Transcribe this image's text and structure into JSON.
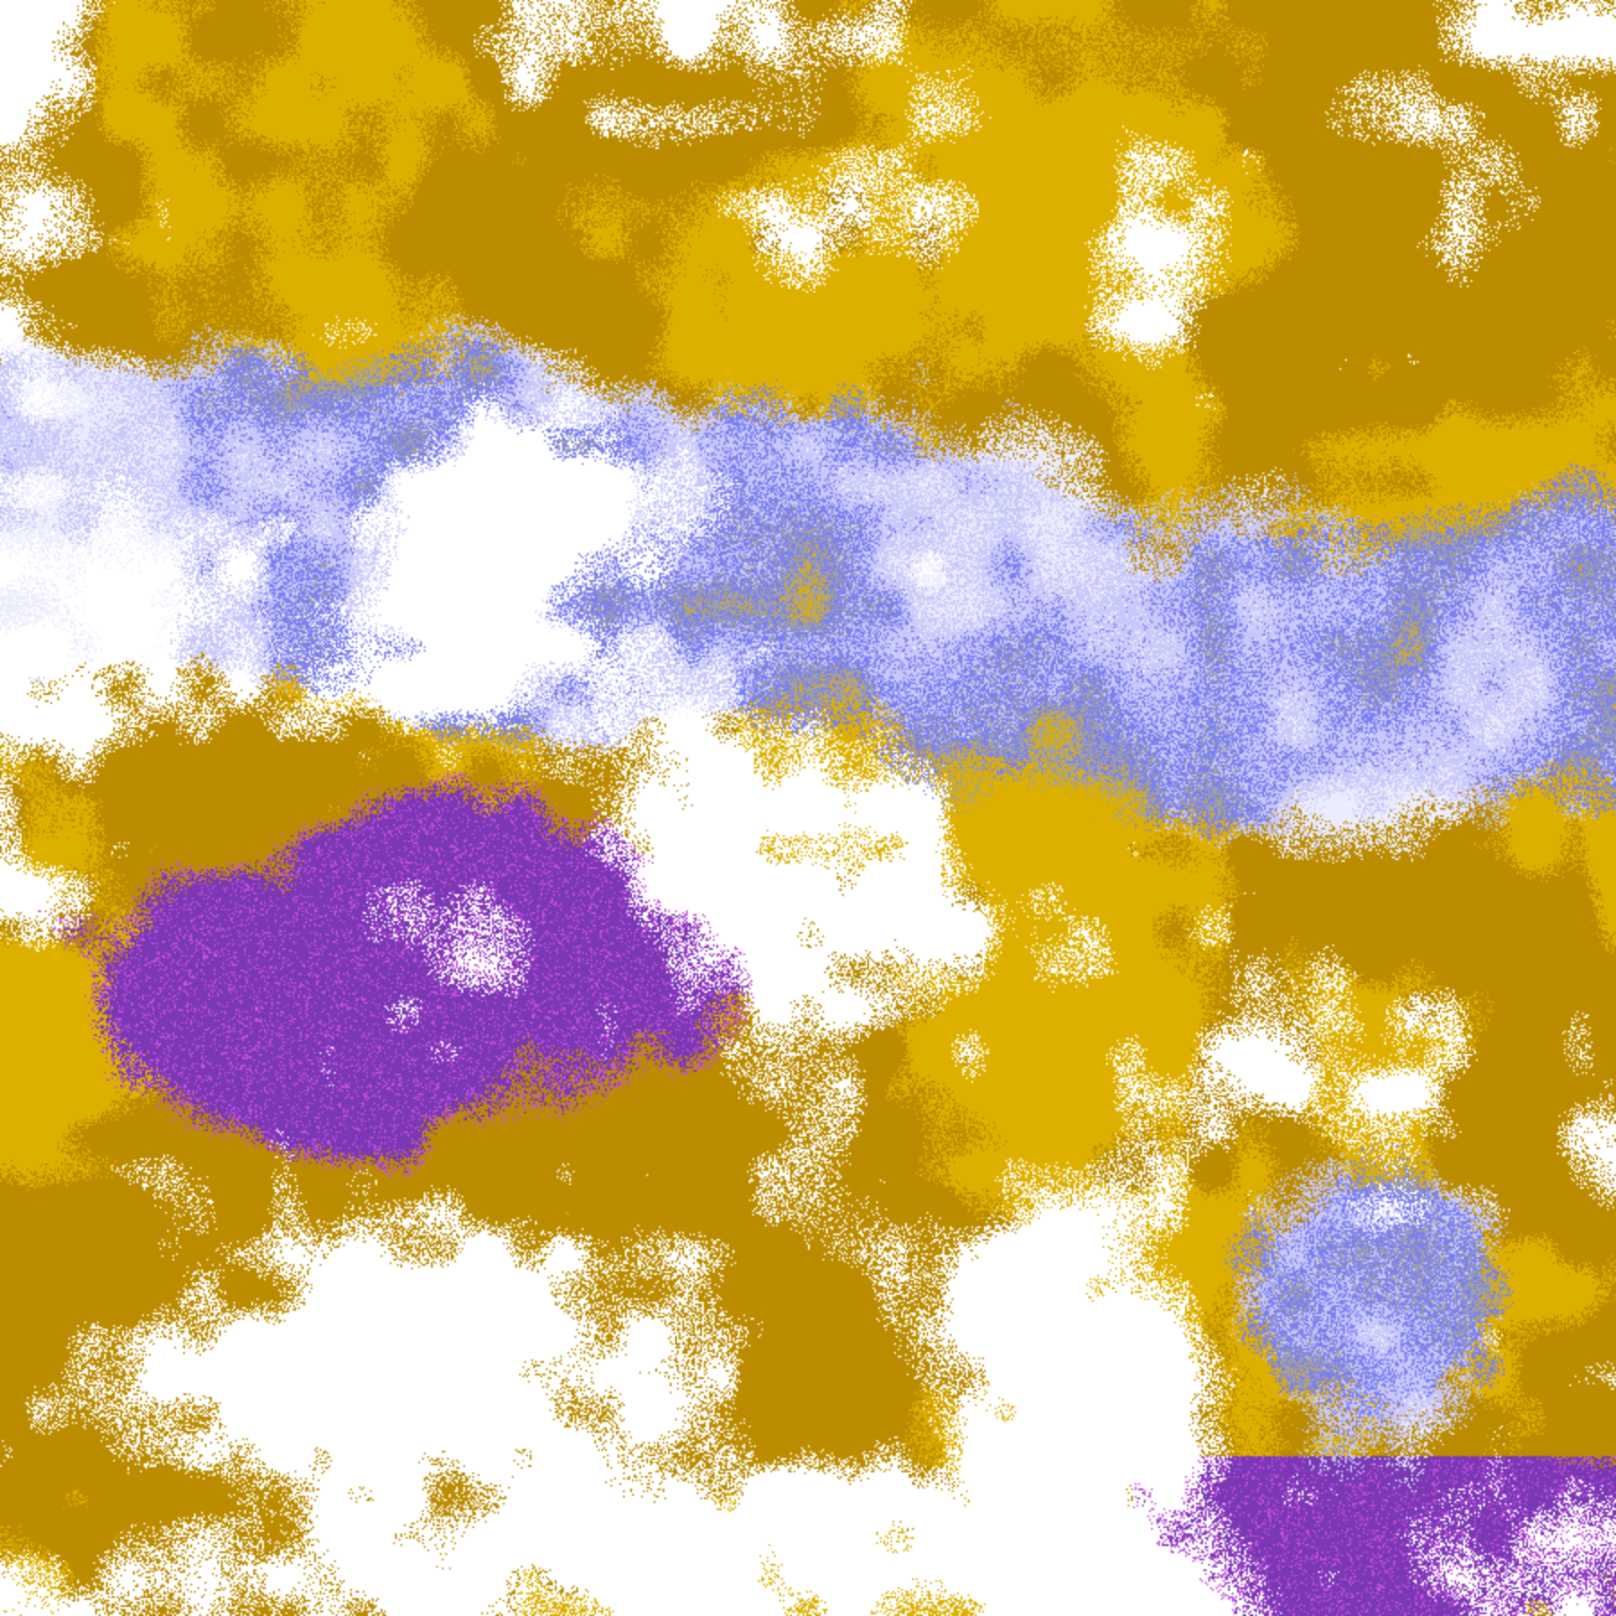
{
  "map": {
    "kind": "satellite cloud-type classification",
    "palette": {
      "clear": "#ffffff",
      "gold": "#ddb000",
      "dark_gold": "#bb8c00",
      "purple": "#7a38b4",
      "magenta": "#c850e0",
      "blue": "#7a80f0",
      "lavender": "#c8c8fa",
      "pale": "#ececff",
      "gray": "#a0a0a8"
    }
  }
}
